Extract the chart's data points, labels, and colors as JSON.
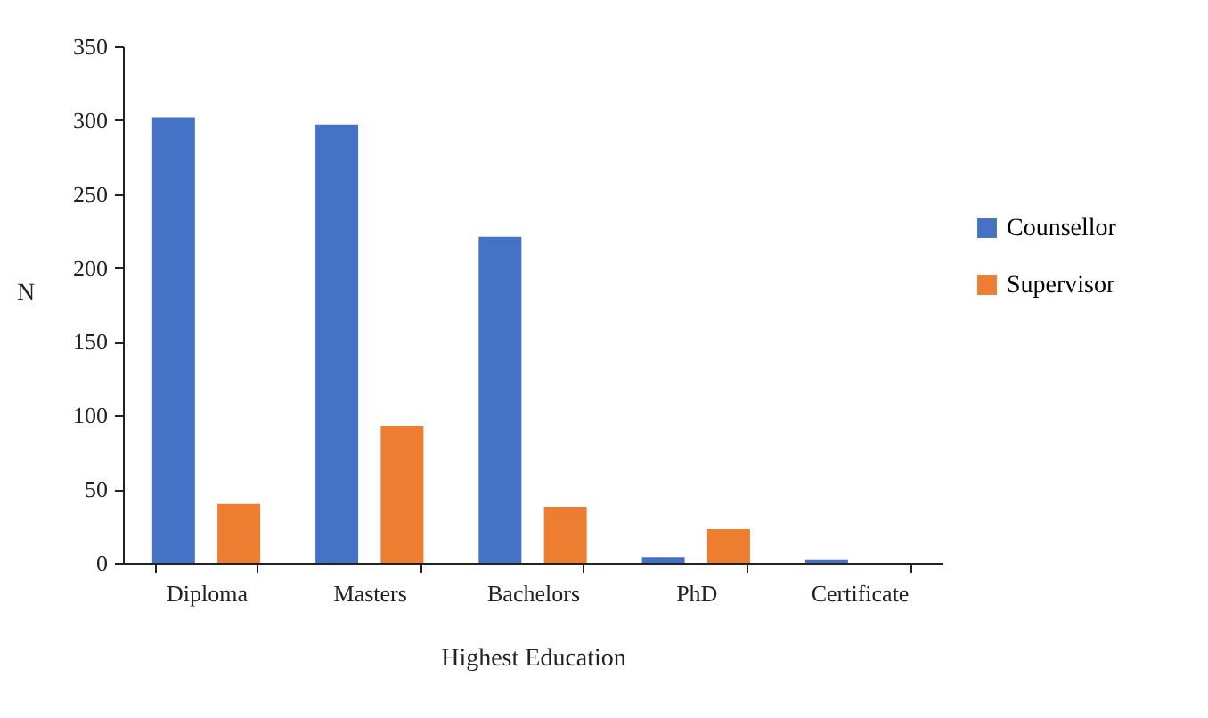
{
  "chart_data": {
    "type": "bar",
    "xlabel": "Highest Education",
    "ylabel": "N",
    "categories": [
      "Diploma",
      "Masters",
      "Bachelors",
      "PhD",
      "Certificate"
    ],
    "series": [
      {
        "name": "Counsellor",
        "color": "#4472c4",
        "values": [
          302,
          297,
          221,
          4,
          2
        ]
      },
      {
        "name": "Supervisor",
        "color": "#ed7d31",
        "values": [
          40,
          93,
          38,
          23,
          0
        ]
      }
    ],
    "ylim": [
      0,
      350
    ],
    "yticks": [
      0,
      50,
      100,
      150,
      200,
      250,
      300,
      350
    ],
    "grid": false,
    "legend": "right"
  }
}
